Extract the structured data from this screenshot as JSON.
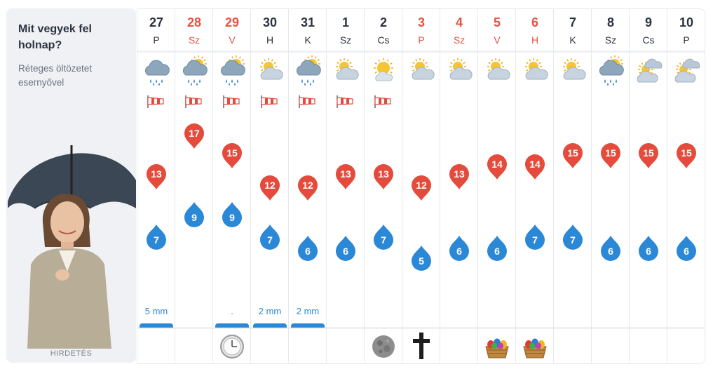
{
  "panel": {
    "title": "Mit vegyek fel holnap?",
    "subtitle": "Réteges öltözetet esernyővel",
    "ad_label": "HIRDETÉS"
  },
  "days": [
    {
      "num": "27",
      "name": "P",
      "holiday": false,
      "weather": "cloudy-rain-icon",
      "wind": true,
      "max": "13",
      "min": "7",
      "rain": "5 mm",
      "rain_bar": true,
      "event": ""
    },
    {
      "num": "28",
      "name": "Sz",
      "holiday": true,
      "weather": "partly-cloudy-rain-icon",
      "wind": true,
      "max": "17",
      "min": "9",
      "rain": "",
      "rain_bar": false,
      "event": ""
    },
    {
      "num": "29",
      "name": "V",
      "holiday": true,
      "weather": "partly-cloudy-rain-icon",
      "wind": true,
      "max": "15",
      "min": "9",
      "rain": ".",
      "rain_bar": true,
      "event": "clock-icon"
    },
    {
      "num": "30",
      "name": "H",
      "holiday": false,
      "weather": "partly-cloudy-icon",
      "wind": true,
      "max": "12",
      "min": "7",
      "rain": "2 mm",
      "rain_bar": true,
      "event": ""
    },
    {
      "num": "31",
      "name": "K",
      "holiday": false,
      "weather": "partly-cloudy-rain-icon",
      "wind": true,
      "max": "12",
      "min": "6",
      "rain": "2 mm",
      "rain_bar": true,
      "event": ""
    },
    {
      "num": "1",
      "name": "Sz",
      "holiday": false,
      "weather": "partly-cloudy-icon",
      "wind": true,
      "max": "13",
      "min": "6",
      "rain": "",
      "rain_bar": false,
      "event": ""
    },
    {
      "num": "2",
      "name": "Cs",
      "holiday": false,
      "weather": "sunny-cloud-icon",
      "wind": true,
      "max": "13",
      "min": "7",
      "rain": "",
      "rain_bar": false,
      "event": "full-moon-icon"
    },
    {
      "num": "3",
      "name": "P",
      "holiday": true,
      "weather": "partly-cloudy-icon",
      "wind": false,
      "max": "12",
      "min": "5",
      "rain": "",
      "rain_bar": false,
      "event": "cross-icon"
    },
    {
      "num": "4",
      "name": "Sz",
      "holiday": true,
      "weather": "partly-cloudy-icon",
      "wind": false,
      "max": "13",
      "min": "6",
      "rain": "",
      "rain_bar": false,
      "event": ""
    },
    {
      "num": "5",
      "name": "V",
      "holiday": true,
      "weather": "partly-cloudy-icon",
      "wind": false,
      "max": "14",
      "min": "6",
      "rain": "",
      "rain_bar": false,
      "event": "easter-basket-icon"
    },
    {
      "num": "6",
      "name": "H",
      "holiday": true,
      "weather": "partly-cloudy-icon",
      "wind": false,
      "max": "14",
      "min": "7",
      "rain": "",
      "rain_bar": false,
      "event": "easter-basket-icon"
    },
    {
      "num": "7",
      "name": "K",
      "holiday": false,
      "weather": "partly-cloudy-icon",
      "wind": false,
      "max": "15",
      "min": "7",
      "rain": "",
      "rain_bar": false,
      "event": ""
    },
    {
      "num": "8",
      "name": "Sz",
      "holiday": false,
      "weather": "partly-cloudy-rain-icon",
      "wind": false,
      "max": "15",
      "min": "6",
      "rain": "",
      "rain_bar": false,
      "event": ""
    },
    {
      "num": "9",
      "name": "Cs",
      "holiday": false,
      "weather": "sun-behind-clouds-icon",
      "wind": false,
      "max": "15",
      "min": "6",
      "rain": "",
      "rain_bar": false,
      "event": ""
    },
    {
      "num": "10",
      "name": "P",
      "holiday": false,
      "weather": "sun-behind-clouds-icon",
      "wind": false,
      "max": "15",
      "min": "6",
      "rain": "",
      "rain_bar": false,
      "event": ""
    }
  ],
  "colors": {
    "max": "#e44b3c",
    "min": "#2b88d6",
    "holiday": "#e85242",
    "rain": "#2b88d6"
  }
}
